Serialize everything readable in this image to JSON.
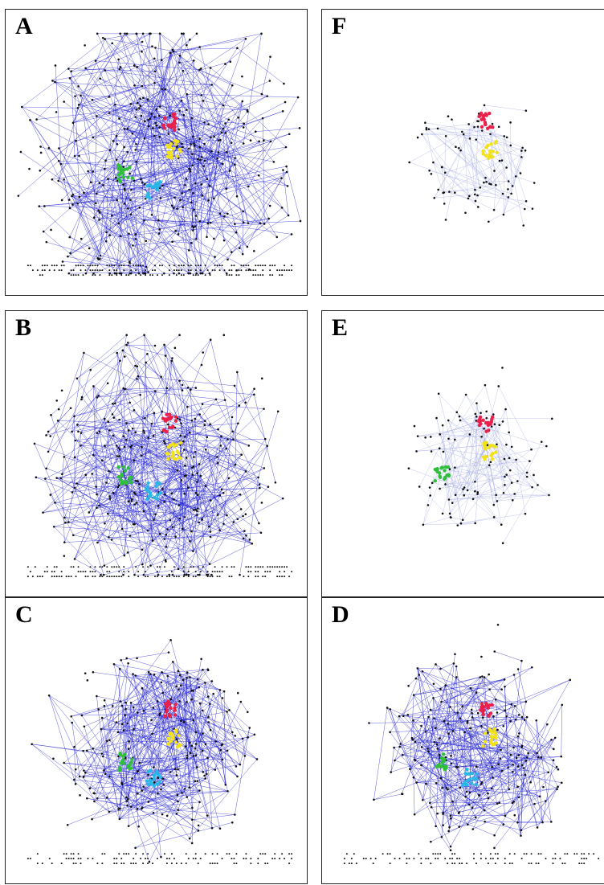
{
  "panels": [
    {
      "label": "A",
      "density": 1.0,
      "clusters": [
        "red",
        "yellow",
        "green",
        "cyan"
      ],
      "bottom_rows": true
    },
    {
      "label": "F",
      "density": 0.08,
      "clusters": [
        "red",
        "yellow"
      ],
      "bottom_rows": false
    },
    {
      "label": "B",
      "density": 0.8,
      "clusters": [
        "red",
        "yellow",
        "green",
        "cyan"
      ],
      "bottom_rows": true
    },
    {
      "label": "E",
      "density": 0.15,
      "clusters": [
        "red",
        "yellow",
        "green"
      ],
      "bottom_rows": false
    },
    {
      "label": "C",
      "density": 0.55,
      "clusters": [
        "red",
        "yellow",
        "green",
        "cyan"
      ],
      "bottom_rows": true
    },
    {
      "label": "D",
      "density": 0.5,
      "clusters": [
        "red",
        "yellow",
        "green",
        "cyan"
      ],
      "bottom_rows": true
    }
  ],
  "colors": {
    "edge": "#1a1acc",
    "edge_faint": "#9aa0e0",
    "node": "#111111",
    "red": "#e8204a",
    "yellow": "#f2e21a",
    "green": "#2fbf3a",
    "cyan": "#28b8e8"
  }
}
